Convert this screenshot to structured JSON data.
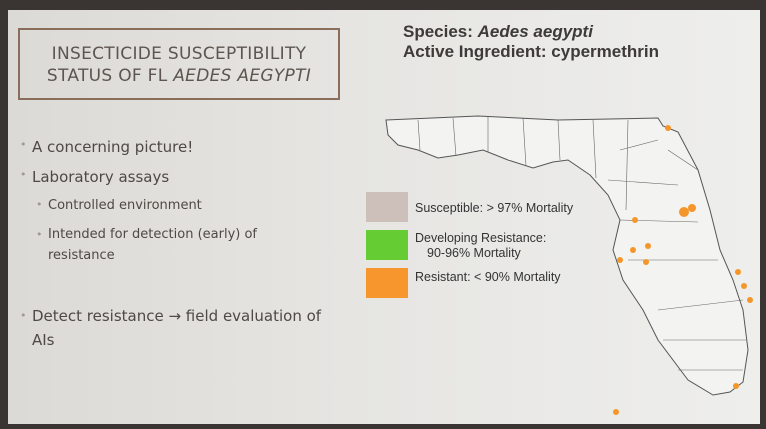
{
  "slide": {
    "title": {
      "line1": "INSECTICIDE SUSCEPTIBILITY",
      "line2_prefix": "STATUS OF FL ",
      "line2_italic": "AEDES AEGYPTI"
    },
    "bullets": [
      {
        "level": 1,
        "text": "A concerning picture!"
      },
      {
        "level": 1,
        "text": "Laboratory assays"
      },
      {
        "level": 2,
        "text": "Controlled environment"
      },
      {
        "level": 2,
        "text": "Intended for detection (early) of resistance"
      },
      {
        "level": 1,
        "text": "Detect resistance → field evaluation of AIs"
      }
    ],
    "species": {
      "label": "Species: ",
      "name": "Aedes aegypti"
    },
    "ingredient": "Active Ingredient: cypermethrin",
    "legend": [
      {
        "line1": "Susceptible: > 97% Mortality"
      },
      {
        "line1": "Developing Resistance:",
        "line2": "90-96% Mortality"
      },
      {
        "line1": "Resistant: < 90% Mortality"
      }
    ]
  }
}
